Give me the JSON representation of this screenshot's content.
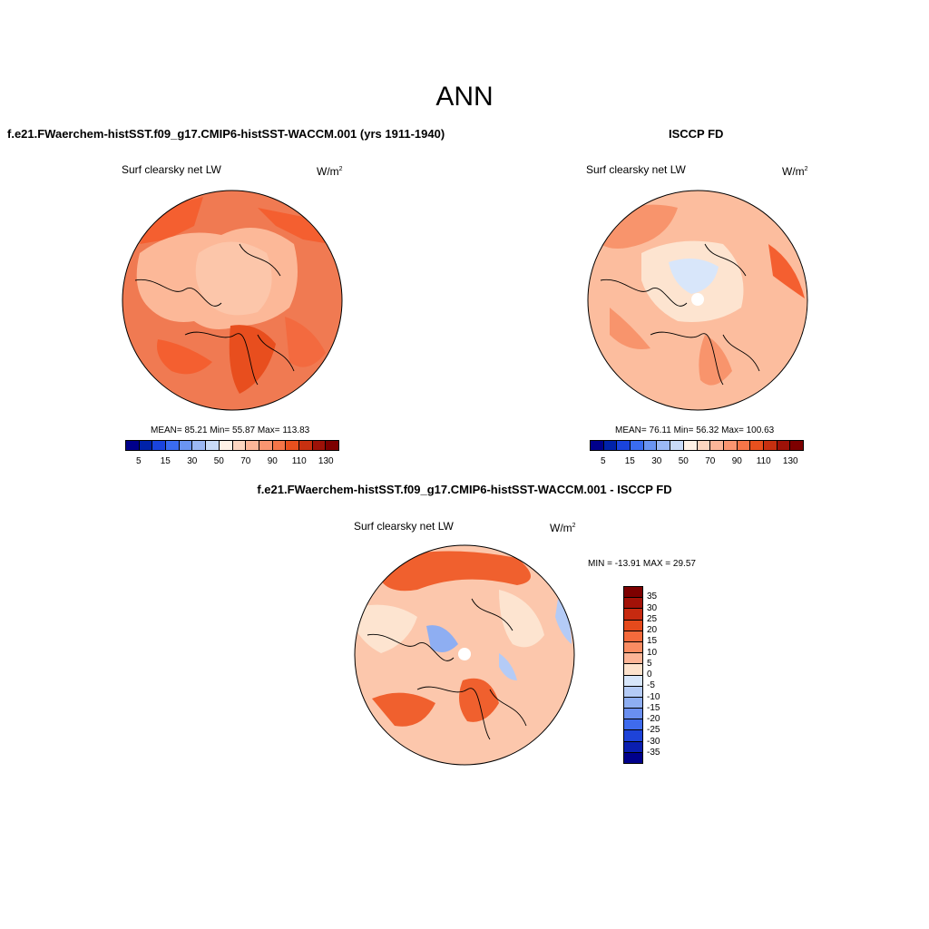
{
  "title": "ANN",
  "panels": {
    "left": {
      "title": "f.e21.FWaerchem-histSST.f09_g17.CMIP6-histSST-WACCM.001 (yrs 1911-1940)",
      "var_label": "Surf clearsky net LW",
      "units": "W/m",
      "units_exp": "2",
      "stats_text": "MEAN=  85.21  Min=  55.87  Max= 113.83"
    },
    "right": {
      "title": "ISCCP FD",
      "var_label": "Surf clearsky net LW",
      "units": "W/m",
      "units_exp": "2",
      "stats_text": "MEAN=  76.11  Min=  56.32  Max= 100.63"
    },
    "diff": {
      "title": "f.e21.FWaerchem-histSST.f09_g17.CMIP6-histSST-WACCM.001 - ISCCP FD",
      "var_label": "Surf clearsky net LW",
      "units": "W/m",
      "units_exp": "2",
      "stats_text": "MIN = -13.91 MAX =  29.57"
    }
  },
  "colorbar_abs": {
    "ticks": [
      "5",
      "15",
      "30",
      "50",
      "70",
      "90",
      "110",
      "130"
    ],
    "colors": [
      "#00008b",
      "#0022aa",
      "#1a44dd",
      "#3a6cf0",
      "#6a94f2",
      "#9bb8f4",
      "#c9dbf7",
      "#fff2e6",
      "#fcd6c0",
      "#fcb698",
      "#fa9570",
      "#f57548",
      "#e8501e",
      "#c73010",
      "#9e1208",
      "#7d0000"
    ]
  },
  "colorbar_diff": {
    "ticks": [
      "35",
      "30",
      "25",
      "20",
      "15",
      "10",
      "5",
      "0",
      "-5",
      "-10",
      "-15",
      "-20",
      "-25",
      "-30",
      "-35"
    ],
    "colors": [
      "#7d0000",
      "#a31208",
      "#c72a10",
      "#e54a1c",
      "#f56a3c",
      "#fa8c62",
      "#fcb496",
      "#fde2cc",
      "#d7e6fa",
      "#b4cbf6",
      "#8eaef2",
      "#6a8ff0",
      "#3f6bed",
      "#1e43d8",
      "#0a1eb0",
      "#00008b"
    ]
  },
  "chart_data": [
    {
      "type": "heatmap",
      "projection": "north polar stereographic",
      "title": "f.e21.FWaerchem-histSST.f09_g17.CMIP6-histSST-WACCM.001 (yrs 1911-1940)",
      "variable": "Surf clearsky net LW",
      "units": "W/m^2",
      "mean": 85.21,
      "min": 55.87,
      "max": 113.83,
      "colorbar_ticks": [
        5,
        15,
        30,
        50,
        70,
        90,
        110,
        130
      ]
    },
    {
      "type": "heatmap",
      "projection": "north polar stereographic",
      "title": "ISCCP FD",
      "variable": "Surf clearsky net LW",
      "units": "W/m^2",
      "mean": 76.11,
      "min": 56.32,
      "max": 100.63,
      "colorbar_ticks": [
        5,
        15,
        30,
        50,
        70,
        90,
        110,
        130
      ]
    },
    {
      "type": "heatmap",
      "projection": "north polar stereographic",
      "title": "f.e21.FWaerchem-histSST.f09_g17.CMIP6-histSST-WACCM.001 - ISCCP FD",
      "variable": "Surf clearsky net LW",
      "units": "W/m^2",
      "min": -13.91,
      "max": 29.57,
      "colorbar_ticks": [
        35,
        30,
        25,
        20,
        15,
        10,
        5,
        0,
        -5,
        -10,
        -15,
        -20,
        -25,
        -30,
        -35
      ]
    }
  ]
}
